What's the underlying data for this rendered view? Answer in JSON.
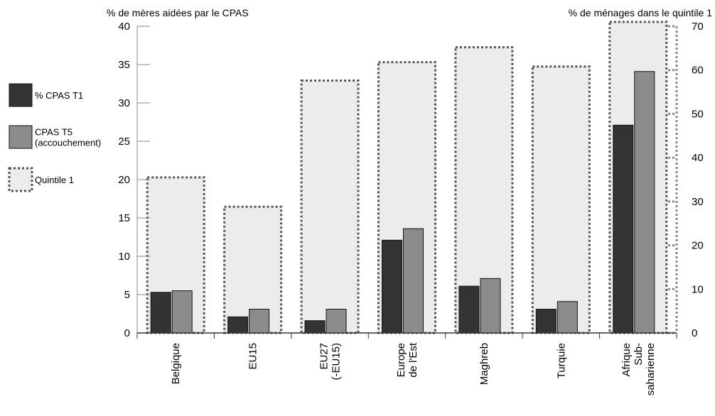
{
  "chart_data": {
    "type": "bar",
    "left_axis_title": "% de mères aidées par le CPAS",
    "right_axis_title": "% de ménages dans le quintile 1",
    "categories": [
      [
        "Belgique"
      ],
      [
        "EU15"
      ],
      [
        "EU27",
        "(-EU15)"
      ],
      [
        "Europe",
        "de l'Est"
      ],
      [
        "Maghreb"
      ],
      [
        "Turquie"
      ],
      [
        "Afrique",
        "Sub-",
        "saharienne"
      ]
    ],
    "left_axis": {
      "ylim": [
        0,
        40
      ],
      "ticks": [
        0,
        5,
        10,
        15,
        20,
        25,
        30,
        35,
        40
      ]
    },
    "right_axis": {
      "ylim": [
        0,
        70
      ],
      "ticks": [
        0,
        10,
        20,
        30,
        40,
        50,
        60,
        70
      ]
    },
    "series": [
      {
        "name": "% CPAS T1",
        "axis": "left",
        "color": "#333333",
        "values": [
          5.3,
          2.1,
          1.6,
          12.1,
          6.1,
          3.1,
          27.1
        ]
      },
      {
        "name": "CPAS T5 (accouchement)",
        "axis": "left",
        "color": "#8c8c8c",
        "legend_lines": [
          "CPAS T5",
          "(accouchement)"
        ],
        "values": [
          5.5,
          3.1,
          3.1,
          13.6,
          7.1,
          4.1,
          34.1
        ]
      },
      {
        "name": "Quintile 1",
        "axis": "right",
        "color": "#ececec",
        "values": [
          35.5,
          28.8,
          57.6,
          61.8,
          65.2,
          60.8,
          71.0
        ]
      }
    ],
    "grid": false,
    "legend_position": "left"
  }
}
